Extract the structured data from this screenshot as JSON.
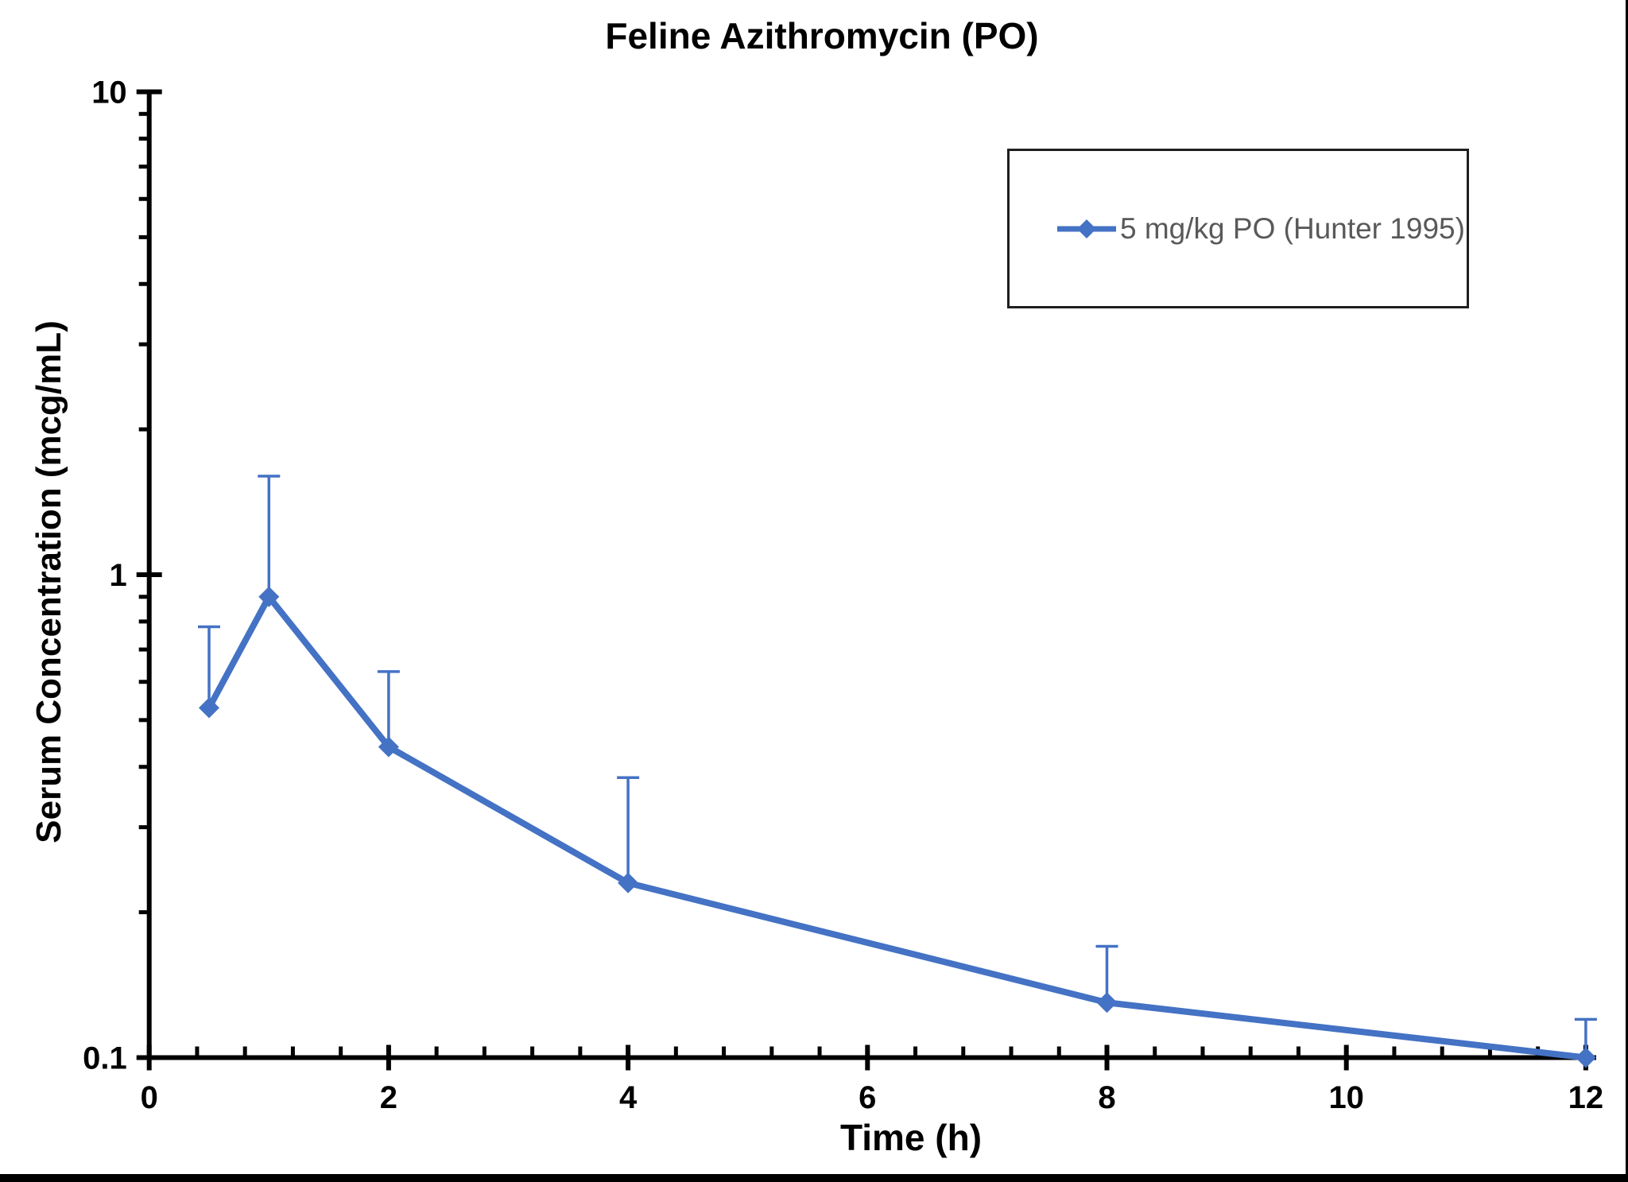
{
  "title": "Feline Azithromycin (PO)",
  "legend": {
    "label": "5 mg/kg PO (Hunter 1995)",
    "text_color": "#595959",
    "border_color": "#1f1f1f"
  },
  "colors": {
    "series_blue": "#4472C4",
    "axis_black": "#000000",
    "background": "#ffffff"
  },
  "chart_data": {
    "type": "line",
    "title": "Feline Azithromycin (PO)",
    "xlabel": "Time (h)",
    "ylabel": "Serum Concentration (mcg/mL)",
    "x_scale": "linear",
    "y_scale": "log",
    "xlim": [
      0,
      12
    ],
    "ylim": [
      0.1,
      10
    ],
    "x_major_ticks": [
      0,
      2,
      4,
      6,
      8,
      10,
      12
    ],
    "x_tick_labels": [
      "0",
      "2",
      "4",
      "6",
      "8",
      "10",
      "12"
    ],
    "x_minor_unit": 0.4,
    "y_major_ticks": [
      10,
      1,
      0.1
    ],
    "y_tick_labels": [
      "10",
      "1",
      "0.1"
    ],
    "grid": false,
    "legend_position": "upper right",
    "series": [
      {
        "name": "5 mg/kg PO (Hunter 1995)",
        "color": "#4472C4",
        "marker": "diamond",
        "error_bars": "upper only",
        "x": [
          0.5,
          1,
          2,
          4,
          8,
          12
        ],
        "y": [
          0.53,
          0.9,
          0.44,
          0.23,
          0.13,
          0.1
        ],
        "error_upper": [
          0.25,
          0.7,
          0.19,
          0.15,
          0.04,
          0.02
        ]
      }
    ]
  }
}
